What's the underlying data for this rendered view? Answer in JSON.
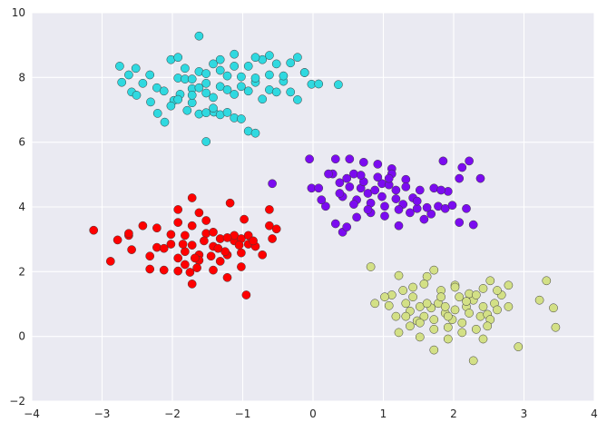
{
  "chart_data": {
    "type": "scatter",
    "title": "",
    "xlabel": "",
    "ylabel": "",
    "xlim": [
      -4,
      4
    ],
    "ylim": [
      -2,
      10
    ],
    "grid": true,
    "legend": "none",
    "background_color": "#EAEAF2",
    "x_ticks": [
      "−4",
      "−3",
      "−2",
      "−1",
      "0",
      "1",
      "2",
      "3",
      "4"
    ],
    "y_ticks": [
      "−2",
      "0",
      "2",
      "4",
      "6",
      "8",
      "10"
    ],
    "series": [
      {
        "color": "#2FD9E0",
        "points": [
          [
            -2.58,
            7.55
          ],
          [
            -2.51,
            7.45
          ],
          [
            -2.31,
            7.24
          ],
          [
            -2.21,
            6.89
          ],
          [
            -2.11,
            6.62
          ],
          [
            -1.98,
            7.29
          ],
          [
            -1.89,
            7.48
          ],
          [
            -1.79,
            6.98
          ],
          [
            -1.72,
            7.22
          ],
          [
            -1.62,
            6.87
          ],
          [
            -1.52,
            6.91
          ],
          [
            -1.52,
            6.02
          ],
          [
            -1.41,
            6.93
          ],
          [
            -1.32,
            6.85
          ],
          [
            -1.22,
            6.92
          ],
          [
            -1.12,
            6.75
          ],
          [
            -1.02,
            6.72
          ],
          [
            -0.92,
            6.34
          ],
          [
            -0.82,
            6.28
          ],
          [
            -0.72,
            7.33
          ],
          [
            -0.62,
            7.62
          ],
          [
            -0.52,
            7.55
          ],
          [
            -0.42,
            7.88
          ],
          [
            -0.32,
            7.55
          ],
          [
            -0.22,
            7.31
          ],
          [
            -0.12,
            8.15
          ],
          [
            -0.02,
            7.79
          ],
          [
            0.08,
            7.8
          ],
          [
            0.36,
            7.78
          ],
          [
            -2.72,
            7.85
          ],
          [
            -2.62,
            8.08
          ],
          [
            -2.52,
            8.28
          ],
          [
            -2.42,
            7.82
          ],
          [
            -2.32,
            8.08
          ],
          [
            -2.22,
            7.68
          ],
          [
            -2.12,
            7.58
          ],
          [
            -2.02,
            8.55
          ],
          [
            -1.92,
            7.98
          ],
          [
            -1.82,
            8.28
          ],
          [
            -1.72,
            7.65
          ],
          [
            -1.62,
            8.18
          ],
          [
            -1.52,
            7.82
          ],
          [
            -1.42,
            8.42
          ],
          [
            -1.32,
            8.22
          ],
          [
            -1.22,
            8.05
          ],
          [
            -1.12,
            8.35
          ],
          [
            -1.02,
            8.02
          ],
          [
            -0.92,
            8.35
          ],
          [
            -0.82,
            7.85
          ],
          [
            -0.72,
            8.55
          ],
          [
            -0.62,
            8.08
          ],
          [
            -0.52,
            8.42
          ],
          [
            -0.42,
            8.05
          ],
          [
            -0.32,
            8.45
          ],
          [
            -0.22,
            8.62
          ],
          [
            -0.12,
            8.15
          ],
          [
            -2.75,
            8.35
          ],
          [
            -1.92,
            8.62
          ],
          [
            -1.62,
            9.28
          ],
          [
            -1.82,
            7.95
          ],
          [
            -1.72,
            7.45
          ],
          [
            -1.62,
            7.68
          ],
          [
            -1.52,
            7.52
          ],
          [
            -1.42,
            7.38
          ],
          [
            -1.32,
            7.72
          ],
          [
            -1.22,
            7.62
          ],
          [
            -1.12,
            7.48
          ],
          [
            -1.02,
            7.72
          ],
          [
            -0.92,
            7.58
          ],
          [
            -0.82,
            7.98
          ],
          [
            -1.72,
            7.95
          ],
          [
            -1.52,
            8.12
          ],
          [
            -1.32,
            8.55
          ],
          [
            -1.12,
            8.72
          ],
          [
            -0.82,
            8.62
          ],
          [
            -0.62,
            8.68
          ],
          [
            -1.92,
            7.32
          ],
          [
            -2.02,
            7.12
          ],
          [
            -1.42,
            7.05
          ]
        ]
      },
      {
        "color": "#7B0BF0",
        "points": [
          [
            -0.05,
            5.48
          ],
          [
            -0.02,
            4.58
          ],
          [
            0.08,
            4.58
          ],
          [
            0.18,
            4.02
          ],
          [
            0.28,
            5.02
          ],
          [
            0.38,
            4.75
          ],
          [
            0.48,
            4.88
          ],
          [
            0.58,
            5.02
          ],
          [
            0.68,
            4.58
          ],
          [
            0.78,
            4.42
          ],
          [
            0.88,
            4.52
          ],
          [
            0.98,
            4.72
          ],
          [
            1.08,
            4.68
          ],
          [
            1.18,
            4.25
          ],
          [
            1.28,
            4.08
          ],
          [
            1.38,
            3.82
          ],
          [
            1.48,
            3.95
          ],
          [
            1.58,
            3.62
          ],
          [
            1.68,
            3.78
          ],
          [
            1.78,
            4.02
          ],
          [
            1.88,
            3.95
          ],
          [
            1.98,
            4.05
          ],
          [
            2.08,
            3.52
          ],
          [
            2.18,
            3.95
          ],
          [
            2.28,
            3.45
          ],
          [
            2.38,
            4.88
          ],
          [
            0.22,
            5.02
          ],
          [
            0.32,
            5.48
          ],
          [
            0.52,
            5.48
          ],
          [
            0.72,
            5.38
          ],
          [
            0.92,
            5.32
          ],
          [
            1.12,
            5.18
          ],
          [
            1.32,
            4.85
          ],
          [
            1.52,
            4.52
          ],
          [
            1.72,
            4.58
          ],
          [
            1.92,
            4.48
          ],
          [
            2.12,
            5.22
          ],
          [
            2.22,
            5.42
          ],
          [
            1.85,
            5.42
          ],
          [
            0.42,
            3.22
          ],
          [
            0.48,
            3.38
          ],
          [
            0.62,
            3.68
          ],
          [
            0.82,
            3.82
          ],
          [
            1.02,
            3.72
          ],
          [
            1.22,
            3.42
          ],
          [
            0.32,
            3.48
          ],
          [
            0.12,
            4.22
          ],
          [
            0.42,
            4.32
          ],
          [
            0.62,
            4.22
          ],
          [
            0.82,
            4.12
          ],
          [
            1.02,
            4.02
          ],
          [
            1.22,
            3.92
          ],
          [
            0.52,
            4.62
          ],
          [
            0.72,
            4.78
          ],
          [
            0.92,
            4.92
          ],
          [
            1.12,
            5.02
          ],
          [
            1.32,
            4.62
          ],
          [
            1.42,
            4.28
          ],
          [
            0.58,
            4.08
          ],
          [
            0.78,
            3.92
          ],
          [
            0.98,
            4.32
          ],
          [
            1.18,
            4.52
          ],
          [
            0.38,
            4.42
          ],
          [
            0.68,
            4.98
          ],
          [
            1.08,
            4.88
          ],
          [
            1.48,
            4.18
          ],
          [
            1.62,
            3.98
          ],
          [
            1.82,
            4.52
          ],
          [
            -0.58,
            4.72
          ],
          [
            2.08,
            4.88
          ]
        ]
      },
      {
        "color": "#FF0000",
        "points": [
          [
            -3.12,
            3.28
          ],
          [
            -2.88,
            2.32
          ],
          [
            -2.78,
            2.98
          ],
          [
            -2.62,
            3.12
          ],
          [
            -2.58,
            2.68
          ],
          [
            -2.42,
            3.42
          ],
          [
            -2.22,
            2.75
          ],
          [
            -2.12,
            2.05
          ],
          [
            -2.02,
            2.85
          ],
          [
            -1.92,
            3.52
          ],
          [
            -1.82,
            2.62
          ],
          [
            -1.72,
            2.82
          ],
          [
            -1.62,
            2.52
          ],
          [
            -1.52,
            3.18
          ],
          [
            -1.42,
            2.78
          ],
          [
            -1.32,
            2.32
          ],
          [
            -1.22,
            2.52
          ],
          [
            -1.12,
            2.95
          ],
          [
            -1.02,
            2.58
          ],
          [
            -0.92,
            2.85
          ],
          [
            -0.82,
            2.78
          ],
          [
            -0.72,
            2.52
          ],
          [
            -0.62,
            3.42
          ],
          [
            -0.52,
            3.32
          ],
          [
            -1.72,
            1.62
          ],
          [
            -1.92,
            2.02
          ],
          [
            -1.82,
            2.22
          ],
          [
            -1.62,
            2.35
          ],
          [
            -1.42,
            2.05
          ],
          [
            -1.22,
            1.82
          ],
          [
            -1.02,
            2.15
          ],
          [
            -0.95,
            1.28
          ],
          [
            -1.62,
            3.82
          ],
          [
            -1.72,
            4.28
          ],
          [
            -1.32,
            3.02
          ],
          [
            -1.12,
            3.12
          ],
          [
            -0.98,
            3.62
          ],
          [
            -2.02,
            3.15
          ],
          [
            -2.22,
            3.35
          ],
          [
            -2.32,
            2.48
          ],
          [
            -1.92,
            2.42
          ],
          [
            -1.82,
            3.12
          ],
          [
            -1.72,
            3.42
          ],
          [
            -1.52,
            3.58
          ],
          [
            -1.42,
            3.22
          ],
          [
            -1.22,
            3.05
          ],
          [
            -1.02,
            3.02
          ],
          [
            -0.92,
            3.12
          ],
          [
            -0.62,
            3.92
          ],
          [
            -0.58,
            3.02
          ],
          [
            -2.62,
            3.18
          ],
          [
            -2.12,
            2.72
          ],
          [
            -1.85,
            2.85
          ],
          [
            -1.65,
            2.12
          ],
          [
            -1.45,
            2.48
          ],
          [
            -1.25,
            2.62
          ],
          [
            -1.05,
            2.82
          ],
          [
            -0.85,
            2.95
          ],
          [
            -1.75,
            1.98
          ],
          [
            -1.92,
            3.92
          ],
          [
            -1.18,
            4.12
          ],
          [
            -1.55,
            2.95
          ],
          [
            -1.35,
            2.72
          ],
          [
            -2.32,
            2.08
          ],
          [
            -1.68,
            2.42
          ]
        ]
      },
      {
        "color": "#D3E086",
        "points": [
          [
            0.82,
            2.15
          ],
          [
            0.88,
            1.02
          ],
          [
            1.08,
            0.95
          ],
          [
            1.18,
            0.62
          ],
          [
            1.28,
            1.42
          ],
          [
            1.38,
            0.78
          ],
          [
            1.48,
            0.48
          ],
          [
            1.58,
            0.62
          ],
          [
            1.68,
            0.88
          ],
          [
            1.78,
            1.02
          ],
          [
            1.88,
            0.72
          ],
          [
            1.98,
            0.52
          ],
          [
            2.08,
            1.22
          ],
          [
            2.18,
            0.92
          ],
          [
            2.28,
            1.12
          ],
          [
            2.38,
            0.62
          ],
          [
            2.48,
            0.68
          ],
          [
            2.58,
            1.02
          ],
          [
            2.68,
            1.28
          ],
          [
            2.78,
            0.92
          ],
          [
            1.22,
            1.88
          ],
          [
            1.42,
            1.52
          ],
          [
            1.62,
            1.85
          ],
          [
            1.82,
            1.42
          ],
          [
            2.02,
            1.58
          ],
          [
            2.22,
            1.32
          ],
          [
            2.42,
            1.48
          ],
          [
            2.62,
            1.42
          ],
          [
            1.12,
            1.28
          ],
          [
            1.32,
            1.02
          ],
          [
            1.52,
            0.92
          ],
          [
            1.72,
            0.52
          ],
          [
            1.92,
            0.28
          ],
          [
            2.12,
            0.42
          ],
          [
            2.32,
            0.22
          ],
          [
            2.52,
            0.52
          ],
          [
            1.22,
            0.12
          ],
          [
            1.52,
            -0.02
          ],
          [
            1.72,
            -0.42
          ],
          [
            1.92,
            -0.08
          ],
          [
            2.42,
            -0.08
          ],
          [
            2.28,
            -0.75
          ],
          [
            2.92,
            -0.32
          ],
          [
            3.22,
            1.12
          ],
          [
            3.32,
            1.72
          ],
          [
            3.42,
            0.88
          ],
          [
            3.45,
            0.28
          ],
          [
            2.78,
            1.58
          ],
          [
            1.02,
            1.22
          ],
          [
            1.42,
            1.22
          ],
          [
            1.62,
            1.02
          ],
          [
            1.82,
            1.22
          ],
          [
            2.02,
            0.82
          ],
          [
            2.22,
            0.72
          ],
          [
            2.42,
            0.92
          ],
          [
            2.62,
            0.82
          ],
          [
            1.32,
            0.62
          ],
          [
            1.52,
            0.42
          ],
          [
            1.72,
            0.22
          ],
          [
            1.92,
            0.62
          ],
          [
            2.12,
            0.12
          ],
          [
            2.52,
            1.72
          ],
          [
            1.72,
            2.05
          ],
          [
            2.02,
            1.52
          ],
          [
            2.32,
            1.28
          ],
          [
            1.58,
            1.62
          ],
          [
            1.88,
            0.92
          ],
          [
            2.18,
            1.08
          ],
          [
            1.38,
            0.32
          ],
          [
            2.48,
            0.32
          ]
        ]
      }
    ]
  }
}
